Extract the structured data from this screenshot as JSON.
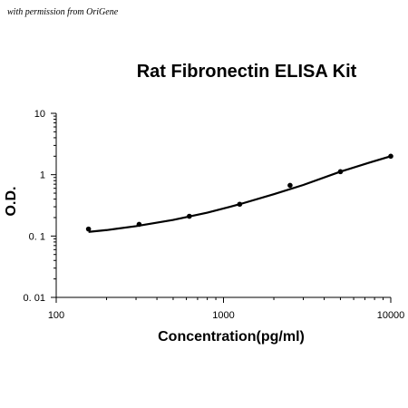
{
  "credit": "with permission from OriGene",
  "chart_data": {
    "type": "scatter",
    "title": "Rat Fibronectin ELISA Kit",
    "xlabel": "Concentration(pg/ml)",
    "ylabel": "O.D.",
    "x_scale": "log",
    "y_scale": "log",
    "xlim": [
      100,
      10000
    ],
    "ylim": [
      0.01,
      10
    ],
    "x_ticks": [
      {
        "value": 100,
        "label": "100"
      },
      {
        "value": 1000,
        "label": "1000"
      },
      {
        "value": 10000,
        "label": "10000"
      }
    ],
    "y_ticks": [
      {
        "value": 10,
        "label": "10"
      },
      {
        "value": 1,
        "label": "1"
      },
      {
        "value": 0.1,
        "label": "0. 1"
      },
      {
        "value": 0.01,
        "label": "0. 01"
      }
    ],
    "grid": false,
    "legend": "none",
    "series": [
      {
        "x": [
          156,
          313,
          625,
          1250,
          2500,
          5000,
          10000
        ],
        "y": [
          0.13,
          0.155,
          0.21,
          0.33,
          0.67,
          1.12,
          2.0
        ]
      }
    ],
    "fit_curve": {
      "x": [
        156,
        200,
        300,
        500,
        800,
        1250,
        2000,
        3000,
        5000,
        7500,
        10000
      ],
      "y": [
        0.117,
        0.125,
        0.145,
        0.183,
        0.24,
        0.33,
        0.48,
        0.68,
        1.12,
        1.58,
        2.0
      ]
    },
    "colors": {
      "marks": "#000000"
    }
  }
}
